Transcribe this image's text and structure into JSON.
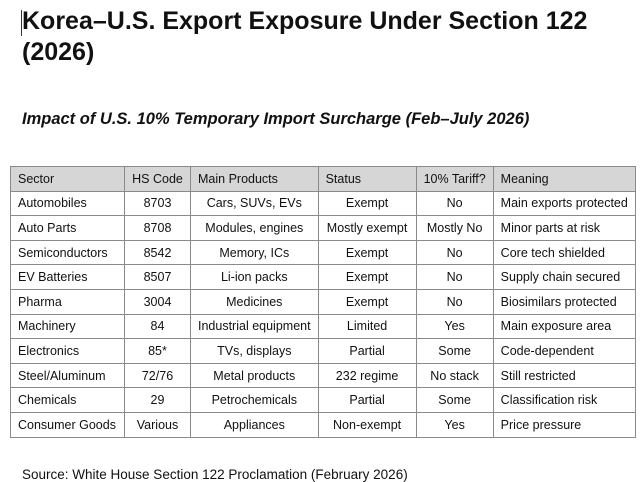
{
  "title": "Korea–U.S. Export Exposure Under Section 122 (2026)",
  "subtitle": "Impact of U.S. 10% Temporary Import Surcharge (Feb–July 2026)",
  "table": {
    "headers": [
      "Sector",
      "HS Code",
      "Main Products",
      "Status",
      "10% Tariff?",
      "Meaning"
    ],
    "rows": [
      [
        "Automobiles",
        "8703",
        "Cars, SUVs, EVs",
        "Exempt",
        "No",
        "Main exports protected"
      ],
      [
        "Auto Parts",
        "8708",
        "Modules, engines",
        "Mostly exempt",
        "Mostly No",
        "Minor parts at risk"
      ],
      [
        "Semiconductors",
        "8542",
        "Memory, ICs",
        "Exempt",
        "No",
        "Core tech shielded"
      ],
      [
        "EV Batteries",
        "8507",
        "Li-ion packs",
        "Exempt",
        "No",
        "Supply chain secured"
      ],
      [
        "Pharma",
        "3004",
        "Medicines",
        "Exempt",
        "No",
        "Biosimilars protected"
      ],
      [
        "Machinery",
        "84",
        "Industrial equipment",
        "Limited",
        "Yes",
        "Main exposure area"
      ],
      [
        "Electronics",
        "85*",
        "TVs, displays",
        "Partial",
        "Some",
        "Code-dependent"
      ],
      [
        "Steel/Aluminum",
        "72/76",
        "Metal products",
        "232 regime",
        "No stack",
        "Still restricted"
      ],
      [
        "Chemicals",
        "29",
        "Petrochemicals",
        "Partial",
        "Some",
        "Classification risk"
      ],
      [
        "Consumer Goods",
        "Various",
        "Appliances",
        "Non-exempt",
        "Yes",
        "Price pressure"
      ]
    ]
  },
  "source": "Source: White House Section 122 Proclamation (February 2026)"
}
